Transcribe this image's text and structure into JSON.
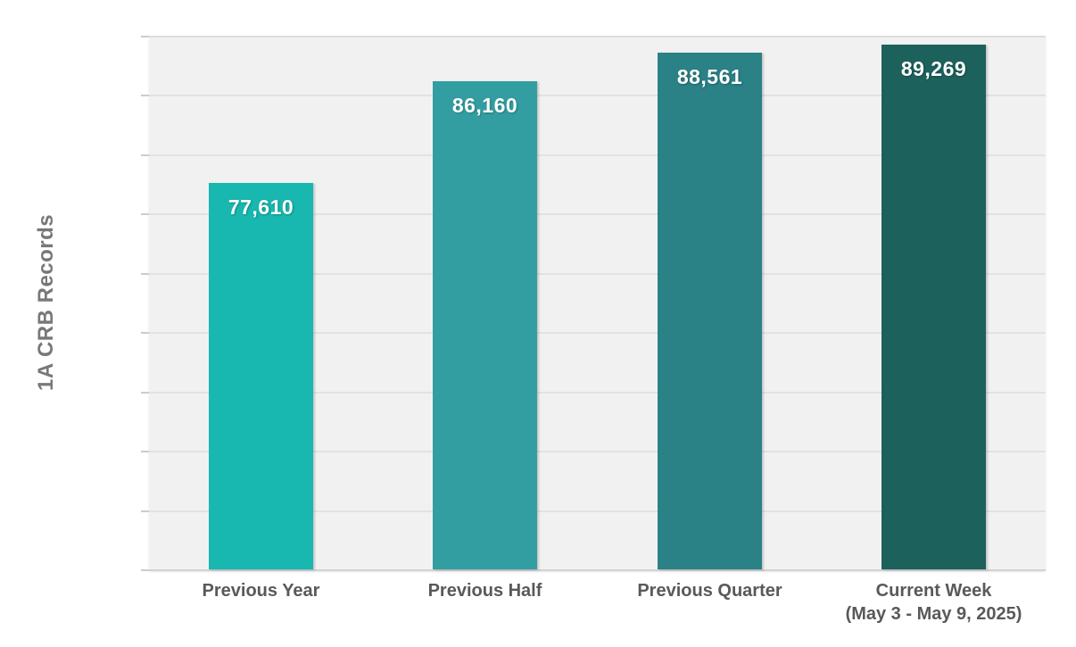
{
  "chart_data": {
    "type": "bar",
    "title": "",
    "xlabel": "",
    "ylabel": "1A CRB Records",
    "categories": [
      "Previous Year",
      "Previous Half",
      "Previous Quarter",
      "Current Week\n(May 3 - May 9, 2025)"
    ],
    "values": [
      77610,
      86160,
      88561,
      89269
    ],
    "value_labels": [
      "77,610",
      "86,160",
      "88,561",
      "89,269"
    ],
    "ylim": [
      45000,
      90000
    ],
    "gridline_step": 5000,
    "grid": "horizontal",
    "legend": "none",
    "y_tick_labels_visible": false,
    "bar_colors": [
      "#18b7b0",
      "#339ea1",
      "#2a8186",
      "#1d615d"
    ],
    "colors": {
      "plot_background": "#f1f1f2",
      "gridline": "#e2e2e2",
      "axis_line": "#d2d2d2",
      "tick": "#cccccc",
      "value_label": "#ffffff",
      "category_label": "#595959",
      "axis_title": "#787878",
      "page_background": "#ffffff"
    }
  }
}
